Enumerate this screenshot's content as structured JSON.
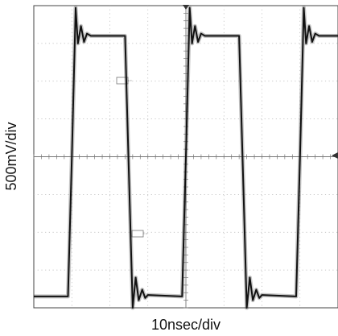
{
  "chart_data": {
    "type": "line",
    "xlabel": "10nsec/div",
    "ylabel": "500mV/div",
    "grid": true,
    "divisions": {
      "x": 8,
      "y": 8
    },
    "xlim": [
      0,
      80
    ],
    "ylim": [
      0,
      4
    ],
    "series": [
      {
        "x": [
          0,
          9.0,
          10.0,
          11.0,
          11.6,
          12.4,
          13.2,
          14.0,
          15.0,
          24.0,
          25.0,
          26.0,
          26.8,
          27.6,
          28.5,
          29.3,
          30.0,
          39.0,
          40.0,
          41.0,
          41.6,
          42.4,
          43.2,
          44.0,
          45.0,
          54.0,
          55.0,
          56.0,
          56.8,
          57.6,
          58.5,
          59.3,
          60.0,
          69.0,
          70.0,
          71.0,
          71.6,
          72.4,
          73.2,
          74.0,
          75.0,
          80
        ],
        "y": [
          0.15,
          0.15,
          2.0,
          3.97,
          3.5,
          3.73,
          3.52,
          3.63,
          3.6,
          3.6,
          1.8,
          0.0,
          0.4,
          0.1,
          0.24,
          0.13,
          0.17,
          0.15,
          2.0,
          3.97,
          3.5,
          3.73,
          3.52,
          3.63,
          3.6,
          3.6,
          1.8,
          0.0,
          0.4,
          0.1,
          0.24,
          0.13,
          0.17,
          0.15,
          2.0,
          3.97,
          3.5,
          3.73,
          3.52,
          3.63,
          3.6,
          3.6
        ]
      }
    ]
  }
}
